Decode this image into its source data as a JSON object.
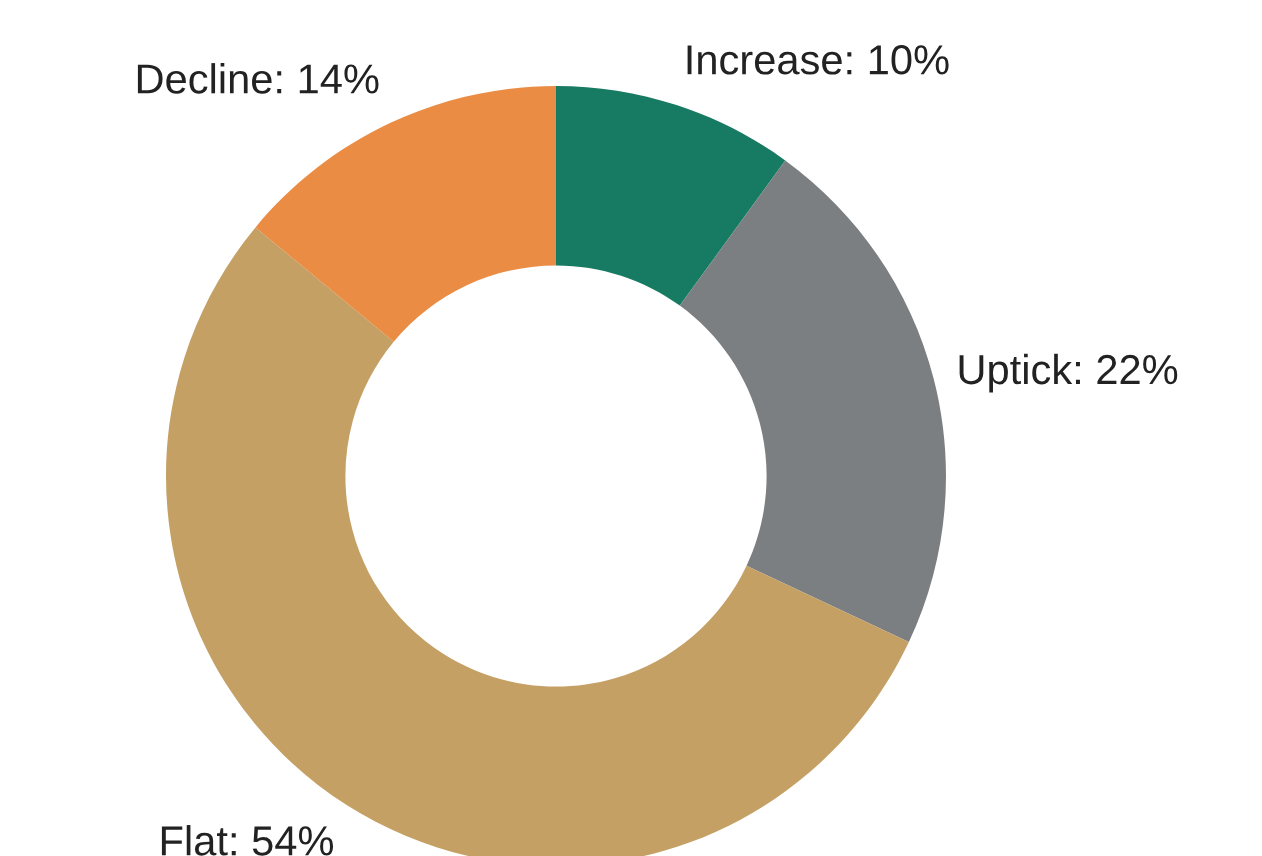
{
  "chart_data": {
    "type": "donut",
    "categories": [
      "Increase",
      "Uptick",
      "Flat",
      "Decline"
    ],
    "values": [
      10,
      22,
      54,
      14
    ],
    "colors": [
      "#177a62",
      "#7b7f82",
      "#c4a064",
      "#ea8c44"
    ],
    "value_labels": [
      "10%",
      "22%",
      "54%",
      "14%"
    ]
  }
}
